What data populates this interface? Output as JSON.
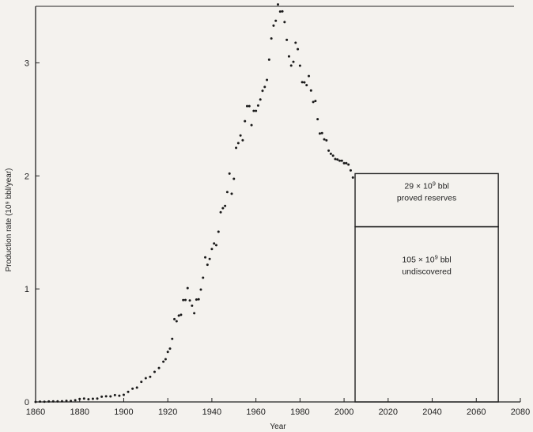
{
  "chart_data": {
    "type": "scatter",
    "title": "",
    "xlabel": "Year",
    "ylabel": "Production rate (10⁹ bbl/year)",
    "xlim": [
      1860,
      2080
    ],
    "ylim": [
      0,
      3.5
    ],
    "x_ticks": [
      1860,
      1880,
      1900,
      1920,
      1940,
      1960,
      1980,
      2000,
      2020,
      2040,
      2060,
      2080
    ],
    "y_ticks": [
      0,
      1,
      2,
      3
    ],
    "grid": false,
    "legend": "none",
    "series": [
      {
        "x": [
          1860,
          1862,
          1864,
          1866,
          1868,
          1870,
          1872,
          1874,
          1876,
          1878,
          1880,
          1882,
          1884,
          1886,
          1888,
          1890,
          1892,
          1894,
          1896,
          1898,
          1900,
          1902,
          1904,
          1906,
          1908,
          1910,
          1912,
          1914,
          1916,
          1918,
          1919,
          1920,
          1921,
          1922,
          1923,
          1924,
          1925,
          1926,
          1927,
          1928,
          1929,
          1930,
          1931,
          1932,
          1933,
          1934,
          1935,
          1936,
          1937,
          1938,
          1939,
          1940,
          1941,
          1942,
          1943,
          1944,
          1945,
          1946,
          1947,
          1948,
          1949,
          1950,
          1951,
          1952,
          1953,
          1954,
          1955,
          1956,
          1957,
          1958,
          1959,
          1960,
          1961,
          1962,
          1963,
          1964,
          1965,
          1966,
          1967,
          1968,
          1969,
          1970,
          1971,
          1972,
          1973,
          1974,
          1975,
          1976,
          1977,
          1978,
          1979,
          1980,
          1981,
          1982,
          1983,
          1984,
          1985,
          1986,
          1987,
          1988,
          1989,
          1990,
          1991,
          1992,
          1993,
          1994,
          1995,
          1996,
          1997,
          1998,
          1999,
          2000,
          2001,
          2002,
          2003,
          2004
        ],
        "y": [
          0.0,
          0.003,
          0.002,
          0.004,
          0.005,
          0.005,
          0.006,
          0.01,
          0.009,
          0.015,
          0.026,
          0.03,
          0.024,
          0.028,
          0.03,
          0.046,
          0.05,
          0.049,
          0.06,
          0.055,
          0.063,
          0.089,
          0.117,
          0.127,
          0.178,
          0.21,
          0.222,
          0.266,
          0.3,
          0.356,
          0.378,
          0.443,
          0.472,
          0.558,
          0.732,
          0.714,
          0.764,
          0.771,
          0.901,
          0.902,
          1.007,
          0.898,
          0.851,
          0.785,
          0.906,
          0.908,
          0.994,
          1.099,
          1.279,
          1.214,
          1.265,
          1.353,
          1.402,
          1.387,
          1.506,
          1.678,
          1.714,
          1.734,
          1.857,
          2.02,
          1.842,
          1.974,
          2.248,
          2.29,
          2.357,
          2.315,
          2.484,
          2.617,
          2.617,
          2.449,
          2.575,
          2.575,
          2.622,
          2.676,
          2.753,
          2.787,
          2.849,
          3.028,
          3.216,
          3.329,
          3.372,
          3.517,
          3.454,
          3.455,
          3.361,
          3.203,
          3.057,
          2.976,
          3.009,
          3.178,
          3.121,
          2.975,
          2.829,
          2.827,
          2.803,
          2.883,
          2.755,
          2.654,
          2.663,
          2.502,
          2.375,
          2.378,
          2.323,
          2.314,
          2.223,
          2.195,
          2.179,
          2.149,
          2.145,
          2.134,
          2.134,
          2.112,
          2.112,
          2.1,
          2.048,
          1.985
        ]
      }
    ],
    "annotations": [
      {
        "line1_prefix": "29 × 10",
        "line1_sup": "9",
        "line1_suffix": " bbl",
        "line2": "proved reserves",
        "x_range": [
          2005,
          2070
        ],
        "y_range": [
          1.55,
          2.02
        ]
      },
      {
        "line1_prefix": "105 × 10",
        "line1_sup": "9",
        "line1_suffix": " bbl",
        "line2": "undiscovered",
        "x_range": [
          2005,
          2070
        ],
        "y_range": [
          0,
          1.55
        ]
      }
    ],
    "colors": {
      "background": "#f4f2ee",
      "ink": "#222222",
      "marker": "#1a1a1a"
    }
  }
}
